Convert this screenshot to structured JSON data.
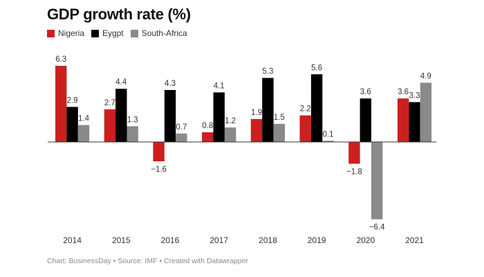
{
  "chart_data": {
    "type": "bar",
    "title": "GDP growth rate (%)",
    "categories": [
      "2014",
      "2015",
      "2016",
      "2017",
      "2018",
      "2019",
      "2020",
      "2021"
    ],
    "series": [
      {
        "name": "Nigeria",
        "color": "#cc1f1f",
        "values": [
          6.3,
          2.7,
          -1.6,
          0.8,
          1.9,
          2.2,
          -1.8,
          3.6
        ]
      },
      {
        "name": "Eygpt",
        "color": "#000000",
        "values": [
          2.9,
          4.4,
          4.3,
          4.1,
          5.3,
          5.6,
          3.6,
          3.3
        ]
      },
      {
        "name": "South-Africa",
        "color": "#8a8a8a",
        "values": [
          1.4,
          1.3,
          0.7,
          1.2,
          1.5,
          0.1,
          -6.4,
          4.9
        ]
      }
    ],
    "xlabel": "",
    "ylabel": "",
    "legend": "top-left",
    "grid": false,
    "data_labels": true
  },
  "footer": "Chart: BusinessDay • Source: IMF • Created with Datawrapper"
}
